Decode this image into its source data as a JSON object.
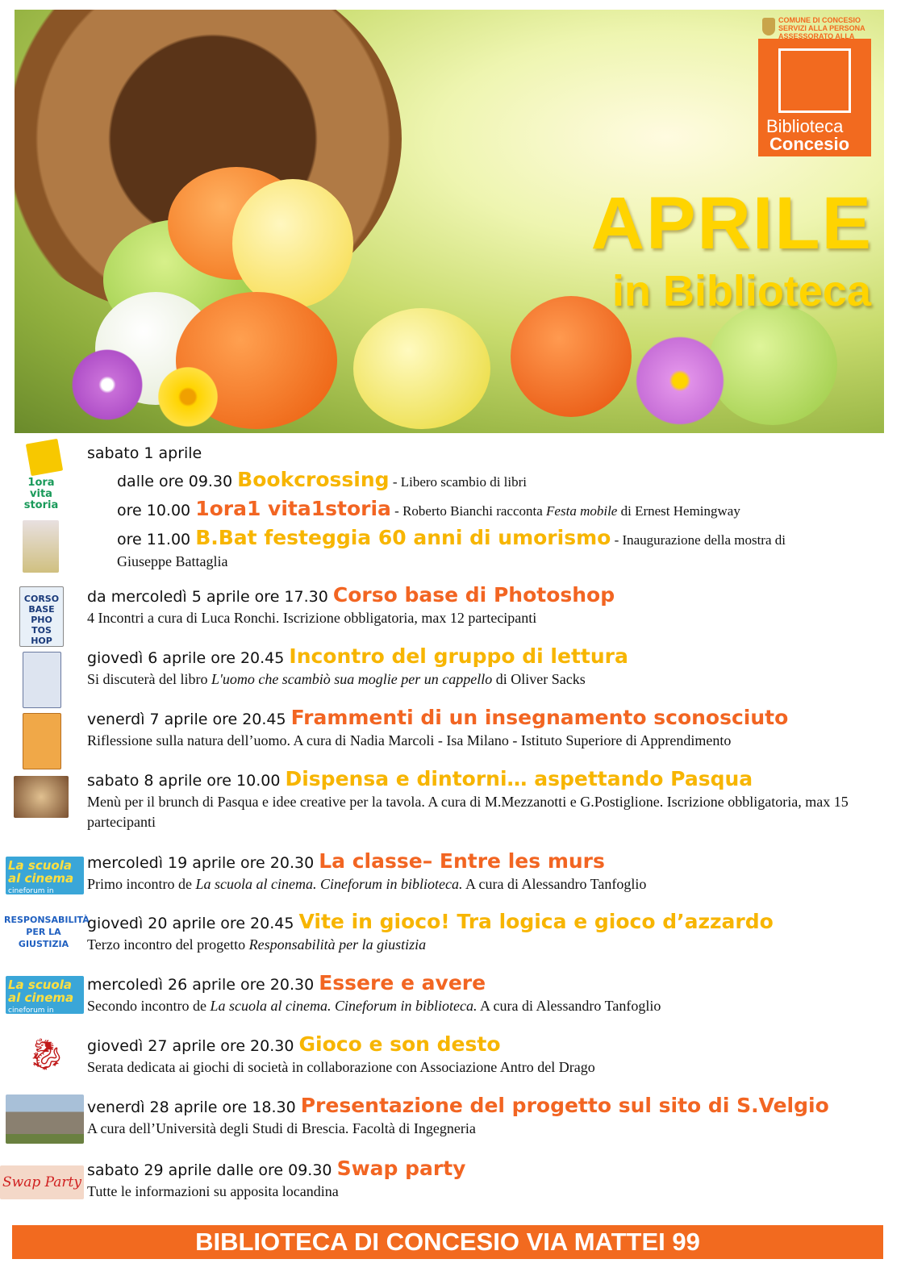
{
  "header": {
    "comune_lines": [
      "COMUNE DI CONCESIO",
      "SERVIZI ALLA PERSONA",
      "ASSESSORATO ALLA CULTURA"
    ],
    "logo_line1": "Biblioteca",
    "logo_line2": "Concesio",
    "title": "APRILE",
    "subtitle": "in Biblioteca"
  },
  "colors": {
    "orange": "#f26522",
    "yellow": "#f7b500",
    "footer": "#f26a1f",
    "title_yellow": "#ffd400"
  },
  "first_day": {
    "date": "sabato 1 aprile",
    "items": [
      {
        "time": "dalle ore  09.30 ",
        "title": "Bookcrossing",
        "color": "yellow",
        "desc": [
          {
            "t": " - Libero scambio di libri"
          }
        ]
      },
      {
        "time": "ore  10.00 ",
        "title": "1ora1 vita1storia",
        "color": "orange",
        "desc": [
          {
            "t": " - Roberto Bianchi racconta "
          },
          {
            "t": "Festa mobile",
            "i": true
          },
          {
            "t": " di  Ernest Hemingway"
          }
        ]
      },
      {
        "time": "ore  11.00 ",
        "title": "B.Bat festeggia 60 anni di umorismo",
        "color": "yellow",
        "desc": [
          {
            "t": " - Inaugurazione della mostra di"
          }
        ],
        "cont": "Giuseppe Battaglia"
      }
    ]
  },
  "events": [
    {
      "date": "da mercoledì 5 aprile ore 17.30 ",
      "title": "Corso base di Photoshop",
      "color": "orange",
      "desc": [
        {
          "t": "4 Incontri a cura di Luca Ronchi. Iscrizione obbligatoria, max 12 partecipanti"
        }
      ],
      "icon": "photoshop-course-cover"
    },
    {
      "date": "giovedì 6 aprile ore 20.45 ",
      "title": "Incontro del gruppo di lettura",
      "color": "yellow",
      "desc": [
        {
          "t": "Si discuterà del libro  "
        },
        {
          "t": "L'uomo che scambiò sua moglie per un cappello",
          "i": true
        },
        {
          "t": " di  Oliver Sacks"
        }
      ],
      "icon": "book-cover"
    },
    {
      "date": "venerdì 7 aprile ore 20.45 ",
      "title": "Frammenti di un insegnamento sconosciuto",
      "color": "orange",
      "desc": [
        {
          "t": "Riflessione sulla natura dell’uomo. A cura di Nadia Marcoli - Isa Milano - Istituto Superiore di Apprendimento"
        }
      ],
      "icon": "book-cover"
    },
    {
      "date": "sabato 8 aprile ore 10.00 ",
      "title": "Dispensa e dintorni… aspettando Pasqua",
      "color": "yellow",
      "desc": [
        {
          "t": "Menù per il brunch di Pasqua e idee creative per la tavola. A cura di M.Mezzanotti e G.Postiglione. Iscrizione obbligatoria, max 15 partecipanti"
        }
      ],
      "icon": "cake-photo"
    },
    {
      "date": "mercoledì 19 aprile ore 20.30 ",
      "title": "La classe– Entre les murs",
      "color": "orange",
      "desc": [
        {
          "t": "Primo incontro de "
        },
        {
          "t": "La scuola al cinema. Cineforum in biblioteca.",
          "i": true
        },
        {
          "t": " A cura di Alessandro Tanfoglio"
        }
      ],
      "icon": "la-scuola-al-cinema-logo"
    },
    {
      "date": "giovedì 20 aprile ore 20.45 ",
      "title": "Vite in gioco! Tra logica e gioco d’azzardo",
      "color": "yellow",
      "desc": [
        {
          "t": "Terzo incontro del progetto "
        },
        {
          "t": "Responsabilità per la giustizia",
          "i": true
        }
      ],
      "icon": "responsabilita-logo"
    },
    {
      "date": "mercoledì 26 aprile ore 20.30 ",
      "title": "Essere e avere",
      "color": "orange",
      "desc": [
        {
          "t": "Secondo incontro de "
        },
        {
          "t": "La scuola al cinema. Cineforum in biblioteca.",
          "i": true
        },
        {
          "t": " A cura di Alessandro Tanfoglio"
        }
      ],
      "icon": "la-scuola-al-cinema-logo"
    },
    {
      "date": "giovedì 27 aprile ore 20.30 ",
      "title": "Gioco e son desto",
      "color": "yellow",
      "desc": [
        {
          "t": "Serata dedicata ai giochi di società in collaborazione con Associazione  Antro del Drago"
        }
      ],
      "icon": "dragon-logo"
    },
    {
      "date": "venerdì 28 aprile ore 18.30  ",
      "title": "Presentazione del progetto sul sito di S.Velgio",
      "color": "orange",
      "desc": [
        {
          "t": "A cura dell’Università  degli Studi di Brescia. Facoltà di Ingegneria"
        }
      ],
      "icon": "church-photo"
    },
    {
      "date": "sabato 29 aprile dalle ore 09.30  ",
      "title": "Swap party",
      "color": "orange",
      "desc": [
        {
          "t": "Tutte le informazioni su apposita locandina"
        }
      ],
      "icon": "swap-party-logo"
    }
  ],
  "thumb_texts": {
    "ora": "1ora vita storia",
    "scuola": "La scuola al cinema",
    "scuola_sub": "cineforum in biblioteca",
    "resp": "RESPONSABILITÀ PER LA GIUSTIZIA",
    "photoshop": "CORSO BASE PHO TOS HOP",
    "swap": "Swap Party"
  },
  "footer": "BIBLIOTECA DI CONCESIO VIA MATTEI 99"
}
